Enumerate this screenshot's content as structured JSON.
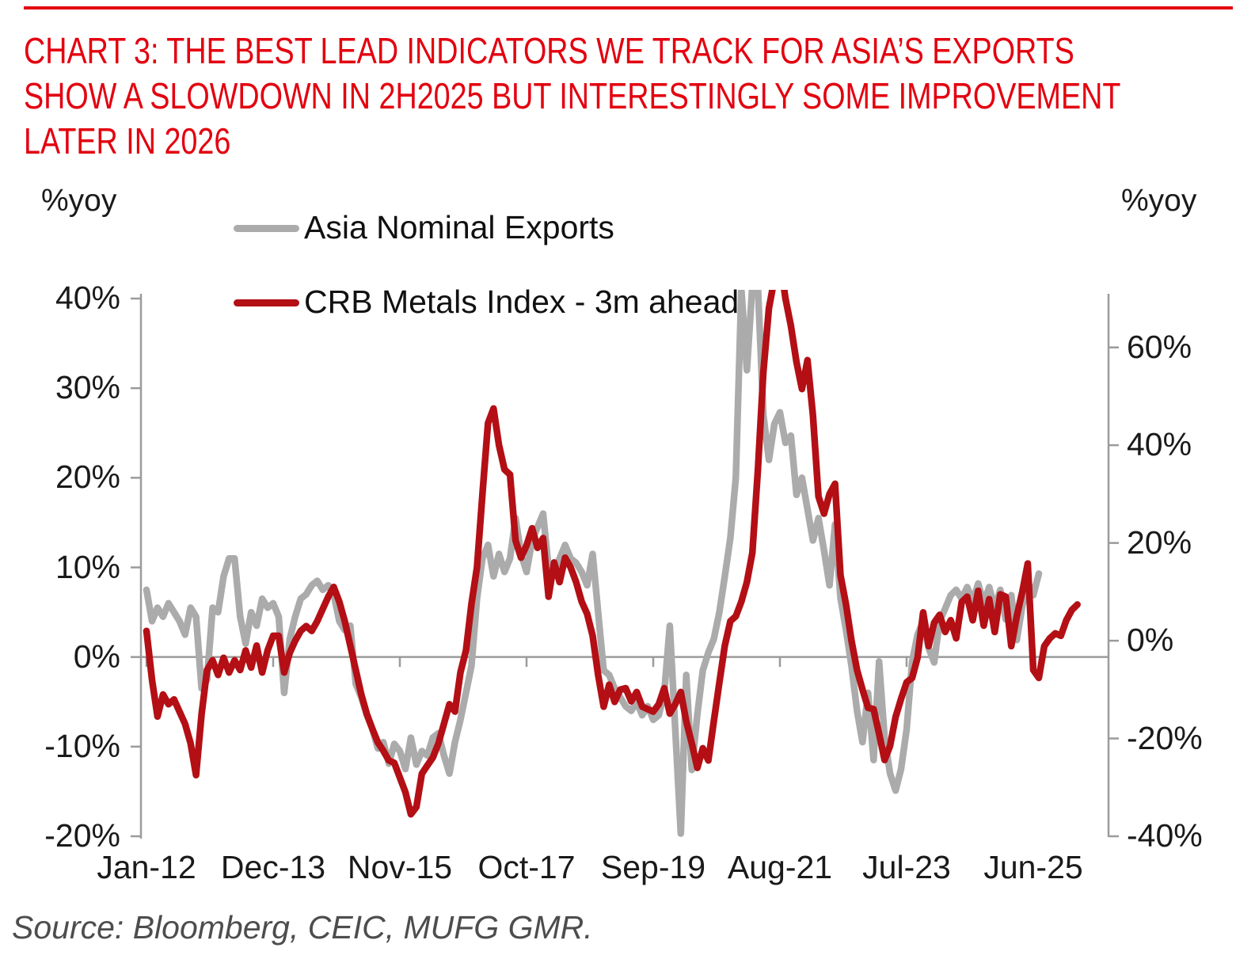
{
  "colors": {
    "title_red": "#e3000f",
    "series_red": "#b30f15",
    "series_gray": "#ababab",
    "axis_gray": "#9b9b9b",
    "background": "#ffffff"
  },
  "header": {
    "title_lines": [
      "CHART 3: THE BEST LEAD INDICATORS WE TRACK FOR ASIA’S EXPORTS",
      "SHOW A SLOWDOWN IN 2H2025 BUT INTERESTINGLY SOME IMPROVEMENT",
      "LATER IN 2026"
    ]
  },
  "axes": {
    "left": {
      "unit": "%yoy",
      "ticks": [
        {
          "label": "40%",
          "value": 40
        },
        {
          "label": "30%",
          "value": 30
        },
        {
          "label": "20%",
          "value": 20
        },
        {
          "label": "10%",
          "value": 10
        },
        {
          "label": "0%",
          "value": 0
        },
        {
          "label": "-10%",
          "value": -10
        },
        {
          "label": "-20%",
          "value": -20
        }
      ]
    },
    "right": {
      "unit": "%yoy",
      "ticks": [
        {
          "label": "60%",
          "value": 60
        },
        {
          "label": "40%",
          "value": 40
        },
        {
          "label": "20%",
          "value": 20
        },
        {
          "label": "0%",
          "value": 0
        },
        {
          "label": "-20%",
          "value": -20
        },
        {
          "label": "-40%",
          "value": -40
        }
      ]
    },
    "x": {
      "ticks": [
        {
          "label": "Jan-12",
          "month": 0
        },
        {
          "label": "Dec-13",
          "month": 23
        },
        {
          "label": "Nov-15",
          "month": 46
        },
        {
          "label": "Oct-17",
          "month": 69
        },
        {
          "label": "Sep-19",
          "month": 92
        },
        {
          "label": "Aug-21",
          "month": 115
        },
        {
          "label": "Jul-23",
          "month": 138
        },
        {
          "label": "Jun-25",
          "month": 161
        }
      ]
    }
  },
  "source": "Source: Bloomberg, CEIC, MUFG GMR.",
  "chart_data": {
    "type": "line",
    "x_start": "2012-01",
    "x_frequency": "monthly",
    "title": "Asia nominal exports vs CRB Metals Index (3m ahead)",
    "left_ylim": [
      -20,
      40
    ],
    "right_ylim": [
      -40,
      70
    ],
    "grid": "zero-line-only",
    "legend_position": "top-left",
    "series": [
      {
        "name": "Asia Nominal Exports",
        "axis": "left",
        "unit": "%yoy",
        "color": "#ababab",
        "values": [
          7.5,
          4.0,
          5.5,
          4.5,
          6.0,
          5.0,
          4.0,
          2.5,
          5.5,
          4.5,
          -3.5,
          -2.5,
          5.5,
          5.0,
          9.0,
          11.0,
          11.0,
          4.5,
          1.5,
          5.0,
          3.5,
          6.5,
          5.5,
          6.0,
          4.5,
          -4.0,
          2.0,
          4.5,
          6.5,
          7.0,
          8.0,
          8.5,
          7.5,
          8.0,
          7.0,
          4.0,
          3.0,
          3.5,
          -3.0,
          -4.5,
          -6.5,
          -8.0,
          -10.2,
          -9.5,
          -11.9,
          -9.7,
          -10.5,
          -12.5,
          -9.0,
          -12.0,
          -10.5,
          -11.0,
          -9.0,
          -8.5,
          -11.0,
          -13.0,
          -9.5,
          -7.0,
          -4.0,
          -1.0,
          6.5,
          11.0,
          12.5,
          9.0,
          11.5,
          9.5,
          11.0,
          15.5,
          11.5,
          9.5,
          13.0,
          14.5,
          16.0,
          10.0,
          9.5,
          11.0,
          12.5,
          11.0,
          10.5,
          9.5,
          8.0,
          11.5,
          5.0,
          -1.5,
          -2.0,
          -3.5,
          -4.5,
          -5.5,
          -6.0,
          -5.0,
          -6.5,
          -5.5,
          -7.0,
          -6.5,
          -4.0,
          3.5,
          -8.0,
          -19.7,
          -2.0,
          -12.6,
          -6.4,
          -1.5,
          0.5,
          2.0,
          5.0,
          9.0,
          13.3,
          20.0,
          41.0,
          32.0,
          41.5,
          41.3,
          27.0,
          22.0,
          26.0,
          27.3,
          23.9,
          24.7,
          18.1,
          20.0,
          16.5,
          13.0,
          15.5,
          11.9,
          8.0,
          14.8,
          6.6,
          3.0,
          -1.0,
          -6.0,
          -9.5,
          -4.0,
          -11.5,
          -0.5,
          -9.0,
          -13.0,
          -14.9,
          -12.5,
          -8.1,
          -0.5,
          2.5,
          4.0,
          1.0,
          -0.6,
          4.0,
          5.4,
          6.9,
          7.5,
          6.5,
          7.8,
          6.2,
          8.2,
          6.0,
          7.8,
          5.4,
          7.5,
          4.2,
          6.9,
          1.9,
          5.7,
          8.4,
          6.9,
          9.3
        ]
      },
      {
        "name": "CRB Metals Index - 3m ahead",
        "axis": "right",
        "unit": "%yoy",
        "color": "#b30f15",
        "values": [
          2.0,
          -8.0,
          -15.5,
          -11.0,
          -13.0,
          -12.0,
          -14.5,
          -17.0,
          -21.0,
          -27.5,
          -15.0,
          -6.0,
          -4.0,
          -7.0,
          -3.5,
          -6.5,
          -4.0,
          -6.0,
          -2.0,
          -5.5,
          -1.0,
          -6.5,
          -2.0,
          1.0,
          1.0,
          -6.5,
          -2.5,
          0.0,
          2.0,
          3.0,
          2.0,
          4.0,
          6.5,
          9.0,
          11.0,
          8.0,
          4.0,
          -1.0,
          -6.0,
          -11.0,
          -15.0,
          -18.0,
          -20.8,
          -22.5,
          -24.5,
          -25.0,
          -28.0,
          -31.0,
          -35.5,
          -34.0,
          -27.2,
          -25.5,
          -23.9,
          -21.0,
          -17.0,
          -13.0,
          -14.5,
          -6.5,
          -2.0,
          7.5,
          15.0,
          30.0,
          44.5,
          47.5,
          40.0,
          35.0,
          34.0,
          20.5,
          17.0,
          19.5,
          23.0,
          19.0,
          21.0,
          9.0,
          16.0,
          12.0,
          17.0,
          15.0,
          12.0,
          8.0,
          5.5,
          1.0,
          -7.0,
          -13.5,
          -9.0,
          -12.5,
          -10.0,
          -9.7,
          -12.4,
          -10.5,
          -13.5,
          -14.0,
          -14.5,
          -13.0,
          -9.7,
          -14.9,
          -13.0,
          -10.5,
          -16.5,
          -21.0,
          -26.0,
          -22.0,
          -24.5,
          -16.5,
          -8.6,
          -1.0,
          4.0,
          5.0,
          8.0,
          12.0,
          18.0,
          35.0,
          55.0,
          68.0,
          74.0,
          78.0,
          70.0,
          64.4,
          57.0,
          51.5,
          57.4,
          46.1,
          29.5,
          26.0,
          30.0,
          32.1,
          13.4,
          7.4,
          0.0,
          -6.0,
          -10.0,
          -13.7,
          -14.0,
          -19.0,
          -24.4,
          -21.5,
          -15.6,
          -11.9,
          -8.5,
          -7.6,
          -3.4,
          5.8,
          -1.1,
          3.7,
          5.3,
          1.8,
          4.2,
          0.5,
          7.9,
          9.0,
          4.2,
          10.2,
          3.1,
          8.5,
          1.8,
          9.5,
          9.0,
          -1.1,
          5.0,
          10.0,
          15.8,
          -6.0,
          -7.6,
          -1.1,
          0.5,
          1.5,
          1.0,
          4.2,
          6.3,
          7.4
        ]
      }
    ]
  }
}
